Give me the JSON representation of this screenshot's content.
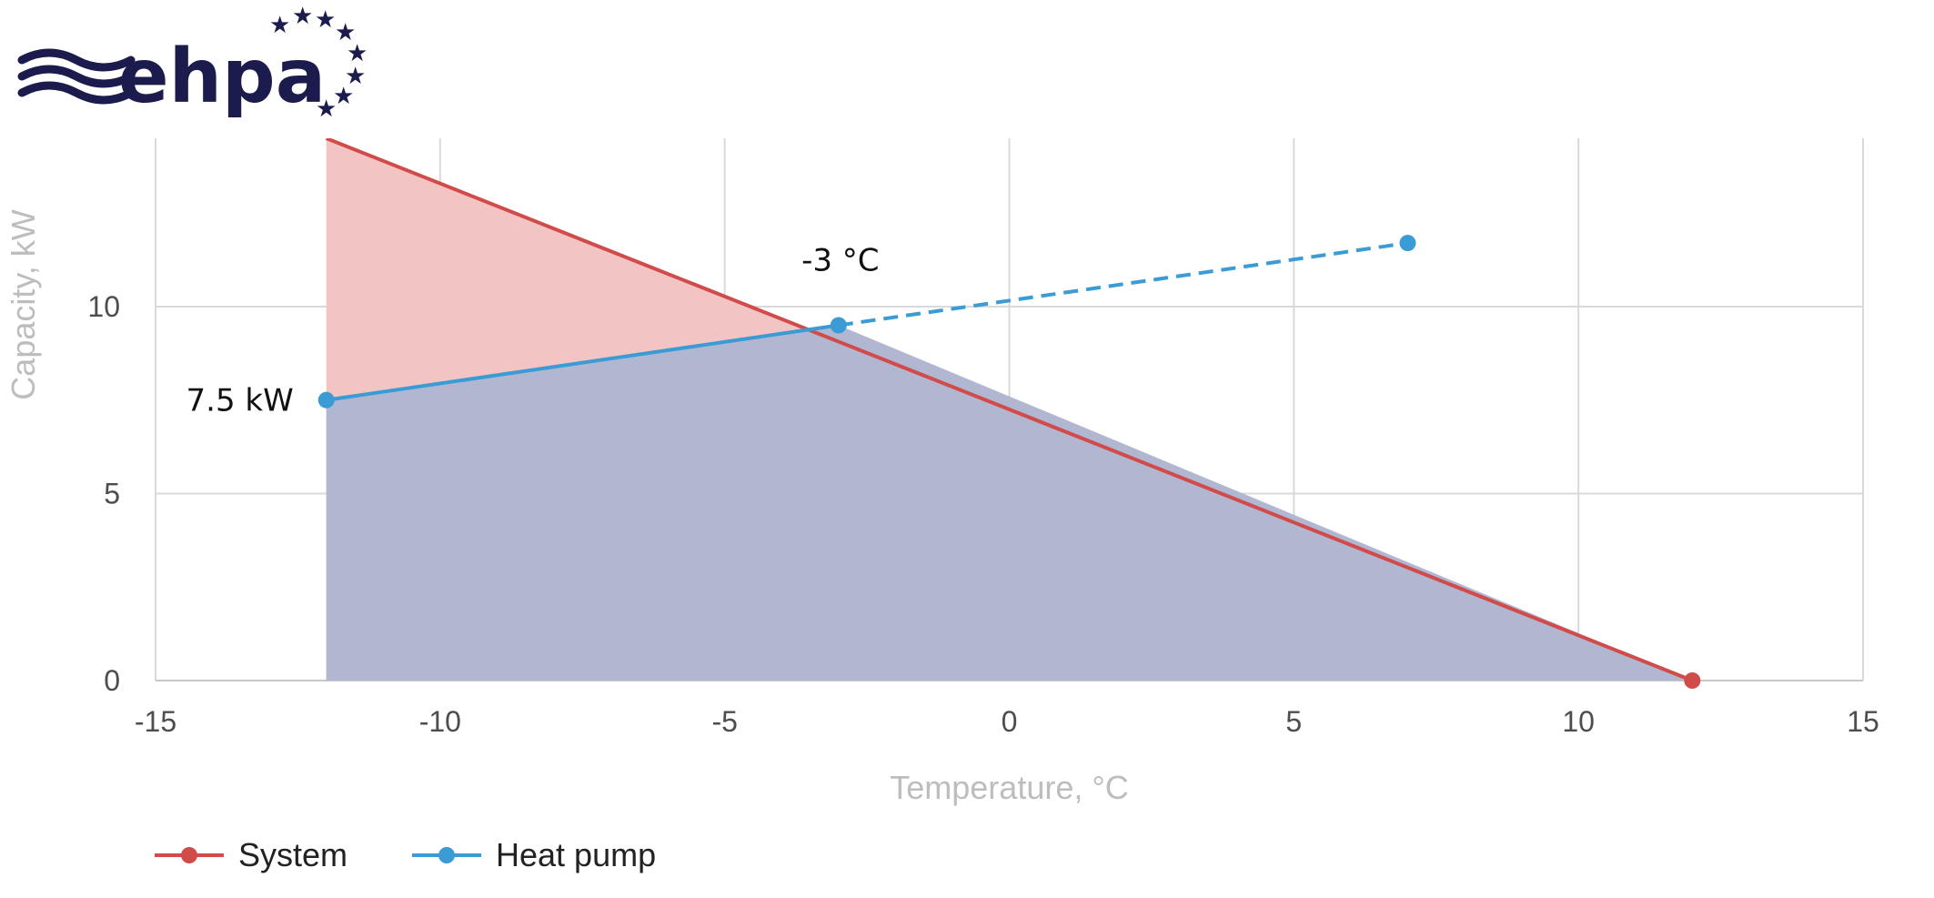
{
  "logo": {
    "text": "ehpa",
    "color": "#1c1b4d"
  },
  "chart_data": {
    "type": "line",
    "xlabel": "Temperature, °C",
    "ylabel": "Capacity, kW",
    "xlim": [
      -15,
      15
    ],
    "ylim": [
      0,
      14.5
    ],
    "x_ticks": [
      -15,
      -10,
      -5,
      0,
      5,
      10,
      15
    ],
    "y_ticks": [
      0,
      5,
      10
    ],
    "grid": true,
    "legend_position": "bottom-left",
    "series": [
      {
        "name": "System",
        "color": "#d24b4b",
        "area_color": "#f3c4c4",
        "points": [
          {
            "x": -12,
            "y": 14.5
          },
          {
            "x": 12,
            "y": 0
          }
        ],
        "marker_points": [
          {
            "x": 12,
            "y": 0
          }
        ]
      },
      {
        "name": "Heat pump",
        "color": "#3a9bd5",
        "area_color": "#b1b7d1",
        "solid_points": [
          {
            "x": -12,
            "y": 7.5
          },
          {
            "x": -3,
            "y": 9.5
          }
        ],
        "dashed_points": [
          {
            "x": -3,
            "y": 9.5
          },
          {
            "x": 7,
            "y": 11.7
          }
        ],
        "marker_points": [
          {
            "x": -12,
            "y": 7.5
          },
          {
            "x": -3,
            "y": 9.5
          },
          {
            "x": 7,
            "y": 11.7
          }
        ]
      }
    ],
    "annotations": [
      {
        "text": "-3 °C",
        "x": -3,
        "y": 9.5
      },
      {
        "text": "7.5 kW",
        "x": -12,
        "y": 7.5
      }
    ]
  }
}
